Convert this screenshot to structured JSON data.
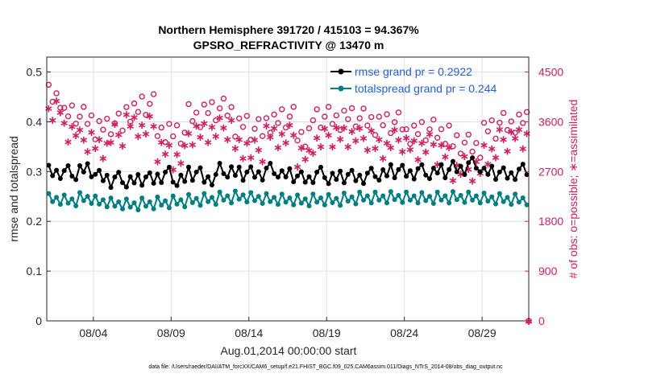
{
  "chart_data": {
    "type": "line",
    "title_line1": "Northern Hemisphere 391720 / 415103 = 94.367%",
    "title_line2": "GPSRO_REFRACTIVITY @ 13470 m",
    "ylabel_left": "rmse and totalspread",
    "ylabel_right": "# of obs: o=possible; ∗=assimilated",
    "xlabel": "Aug.01,2014 00:00:00 start",
    "ylim_left": [
      0,
      0.53
    ],
    "ylim_right": [
      0,
      4770
    ],
    "xlim_days": [
      1,
      32
    ],
    "x_ticks": [
      {
        "day": 4,
        "label": "08/04"
      },
      {
        "day": 9,
        "label": "08/09"
      },
      {
        "day": 14,
        "label": "08/14"
      },
      {
        "day": 19,
        "label": "08/19"
      },
      {
        "day": 24,
        "label": "08/24"
      },
      {
        "day": 29,
        "label": "08/29"
      }
    ],
    "y_ticks_left": [
      "0",
      "0.1",
      "0.2",
      "0.3",
      "0.4",
      "0.5"
    ],
    "y_ticks_right": [
      "0",
      "900",
      "1800",
      "2700",
      "3600",
      "4500"
    ],
    "grid": true,
    "legend_position": "top-right",
    "colors": {
      "rmse": "#000000",
      "spread": "#008080",
      "obs": "#d81b60"
    },
    "series": [
      {
        "name": "rmse grand pr = 0.2922",
        "key": "rmse"
      },
      {
        "name": "totalspread grand pr = 0.244",
        "key": "spread"
      }
    ],
    "daily_rmse": [
      0.3,
      0.295,
      0.302,
      0.29,
      0.282,
      0.28,
      0.285,
      0.292,
      0.283,
      0.295,
      0.287,
      0.3,
      0.295,
      0.297,
      0.3,
      0.292,
      0.287,
      0.292,
      0.287,
      0.29,
      0.29,
      0.294,
      0.3,
      0.299,
      0.297,
      0.3,
      0.308,
      0.311,
      0.297,
      0.295,
      0.298
    ],
    "daily_spread": [
      0.245,
      0.242,
      0.247,
      0.24,
      0.236,
      0.234,
      0.236,
      0.238,
      0.24,
      0.243,
      0.245,
      0.248,
      0.25,
      0.247,
      0.245,
      0.244,
      0.242,
      0.244,
      0.243,
      0.246,
      0.248,
      0.248,
      0.249,
      0.248,
      0.247,
      0.248,
      0.249,
      0.248,
      0.246,
      0.245,
      0.244
    ],
    "daily_possible": [
      4050,
      3720,
      3650,
      3480,
      3530,
      3800,
      3880,
      3430,
      3360,
      3700,
      3780,
      3800,
      3530,
      3430,
      3600,
      3650,
      3350,
      3650,
      3650,
      3670,
      3620,
      3560,
      3550,
      3400,
      3420,
      3400,
      3180,
      3150,
      3450,
      3540,
      3600
    ],
    "daily_assim": [
      3800,
      3450,
      3230,
      3150,
      3330,
      3550,
      3480,
      3050,
      2950,
      3350,
      3440,
      3450,
      3150,
      3050,
      3350,
      3320,
      2950,
      3250,
      3320,
      3360,
      3260,
      3150,
      3230,
      3130,
      3150,
      3000,
      2750,
      2700,
      3050,
      3240,
      3330
    ],
    "final_obs_point": {
      "day": 32,
      "value": 0
    }
  },
  "legend": {
    "rmse_label": "rmse grand pr = 0.2922",
    "spread_label": "totalspread grand pr = 0.244"
  },
  "footnote": "data file: /Users/raeder/DAI/ATM_forcXX/CAM6_setup/f.e21.FHIST_BGC.f09_025.CAM6assim.011/Diags_NTrS_2014-08/obs_diag_output.nc"
}
